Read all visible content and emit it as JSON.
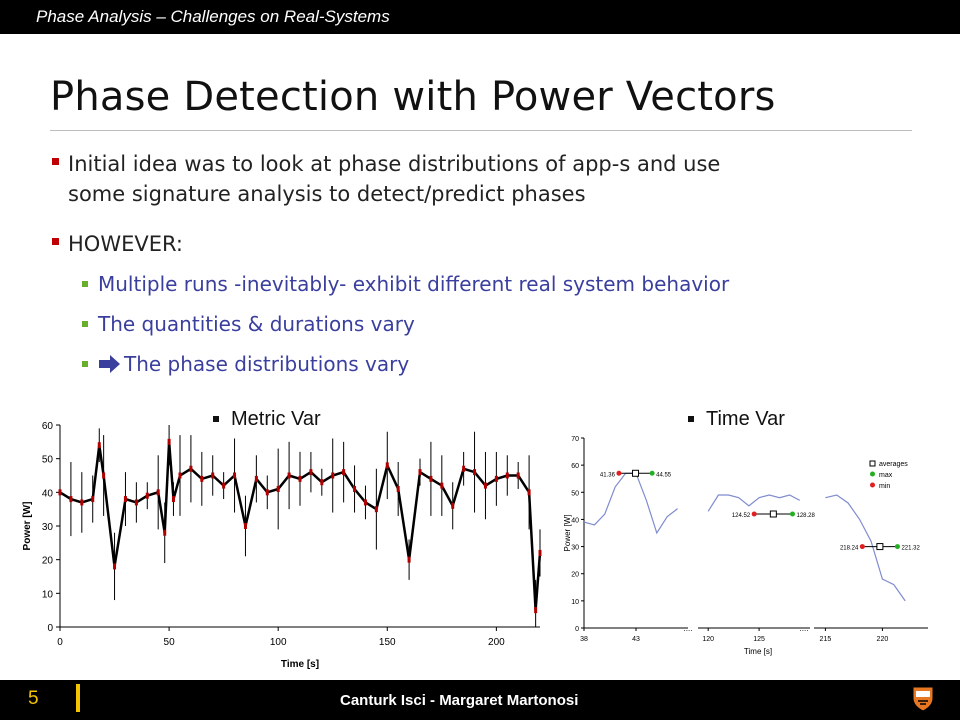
{
  "header": {
    "title": "Phase Analysis – Challenges on Real-Systems"
  },
  "slide": {
    "title": "Phase Detection with Power Vectors",
    "bullets": [
      {
        "line1": "Initial idea was to look at phase distributions of app-s and use",
        "line2": "some signature analysis to detect/predict phases"
      },
      {
        "text": "HOWEVER:"
      }
    ],
    "subbullets": [
      "Multiple runs -inevitably- exhibit different real system behavior",
      "The quantities & durations vary",
      "The phase distributions vary"
    ]
  },
  "colors": {
    "bullet": "#c00000",
    "subbullet": "#6aae2e",
    "subtext": "#3a3f9e",
    "arrow": "#3a3f9e",
    "footer_accent": "#f5c400"
  },
  "figures": {
    "metric_label": "Metric Var",
    "time_label": "Time Var"
  },
  "chart_data": [
    {
      "type": "line",
      "title": "",
      "xlabel": "Time [s]",
      "ylabel": "Power [W]",
      "xlim": [
        0,
        220
      ],
      "ylim": [
        0,
        60
      ],
      "xticks": [
        "0",
        "50",
        "100",
        "150",
        "200"
      ],
      "yticks": [
        "0",
        "10",
        "20",
        "30",
        "40",
        "50",
        "60"
      ],
      "x": [
        0,
        5,
        10,
        15,
        18,
        20,
        25,
        30,
        35,
        40,
        45,
        48,
        50,
        52,
        55,
        60,
        65,
        70,
        75,
        80,
        85,
        90,
        95,
        100,
        105,
        110,
        115,
        120,
        125,
        130,
        135,
        140,
        145,
        150,
        155,
        160,
        165,
        170,
        175,
        180,
        185,
        190,
        195,
        200,
        205,
        210,
        215,
        218,
        220
      ],
      "values": [
        40,
        38,
        37,
        38,
        54,
        45,
        18,
        38,
        37,
        39,
        40,
        28,
        55,
        38,
        45,
        47,
        44,
        45,
        42,
        45,
        30,
        44,
        40,
        41,
        45,
        44,
        46,
        43,
        45,
        46,
        41,
        37,
        35,
        48,
        41,
        20,
        46,
        44,
        42,
        36,
        47,
        46,
        42,
        44,
        45,
        45,
        40,
        5,
        22
      ],
      "grid": false
    },
    {
      "type": "line",
      "title": "",
      "xlabel": "Time [s]",
      "ylabel": "Power [W]",
      "ylim": [
        0,
        70
      ],
      "yticks": [
        "0",
        "10",
        "20",
        "30",
        "40",
        "50",
        "60",
        "70"
      ],
      "xticks": [
        "38",
        "43",
        "120",
        "125",
        "215",
        "220"
      ],
      "legend": [
        "averages",
        "max",
        "min"
      ],
      "legend_position": "top-right",
      "segments": [
        {
          "x": [
            38,
            39,
            40,
            41,
            42,
            43,
            44,
            45,
            46,
            47
          ],
          "values": [
            39,
            38,
            42,
            52,
            57,
            57,
            47,
            35,
            41,
            44
          ]
        },
        {
          "x": [
            120,
            121,
            122,
            123,
            124,
            125,
            126,
            127,
            128,
            129
          ],
          "values": [
            43,
            49,
            49,
            48,
            45,
            48,
            49,
            48,
            49,
            47
          ]
        },
        {
          "x": [
            215,
            216,
            217,
            218,
            219,
            220,
            221,
            222
          ],
          "values": [
            48,
            49,
            46,
            40,
            32,
            18,
            16,
            10
          ]
        }
      ],
      "annotations": [
        {
          "min": "41.36",
          "max": "44.55"
        },
        {
          "min": "124.52",
          "max": "128.28"
        },
        {
          "min": "218.24",
          "max": "221.32"
        }
      ]
    }
  ],
  "footer": {
    "page_number": "5",
    "authors": "Canturk Isci - Margaret Martonosi"
  }
}
